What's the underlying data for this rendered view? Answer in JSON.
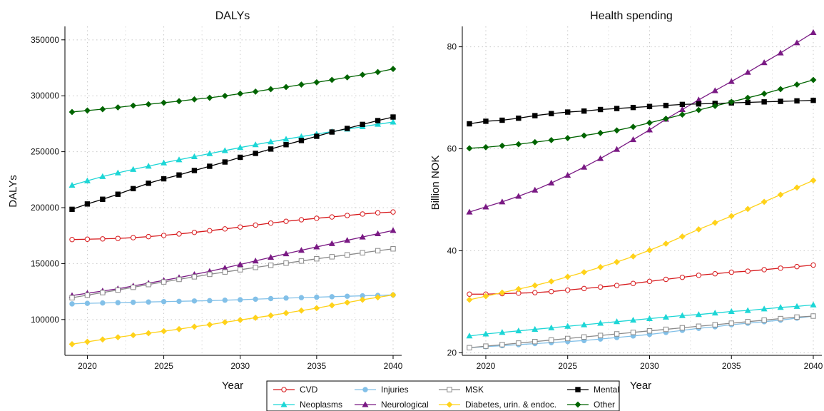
{
  "chart_data": [
    {
      "type": "line",
      "title": "DALYs",
      "xlabel": "Year",
      "ylabel": "DALYs",
      "xlim": [
        2019,
        2040
      ],
      "ylim": [
        68000,
        362000
      ],
      "xticks": [
        "2020",
        "2025",
        "2030",
        "2035",
        "2040"
      ],
      "yticks": [
        "100000",
        "150000",
        "200000",
        "250000",
        "300000",
        "350000"
      ],
      "grid": true,
      "x": [
        2019,
        2020,
        2021,
        2022,
        2023,
        2024,
        2025,
        2026,
        2027,
        2028,
        2029,
        2030,
        2031,
        2032,
        2033,
        2034,
        2035,
        2036,
        2037,
        2038,
        2039,
        2040
      ],
      "series": [
        {
          "name": "CVD",
          "values": [
            171500,
            171800,
            172100,
            172500,
            173200,
            174100,
            175200,
            176500,
            177900,
            179400,
            181000,
            182700,
            184400,
            186200,
            187800,
            189200,
            190500,
            191700,
            193000,
            194300,
            195400,
            196100
          ]
        },
        {
          "name": "Neoplasms",
          "values": [
            220000,
            224000,
            227800,
            231100,
            234200,
            237100,
            240000,
            242800,
            245600,
            248300,
            251000,
            253700,
            256300,
            258800,
            261200,
            263500,
            265800,
            268000,
            270200,
            272400,
            274500,
            276500
          ]
        },
        {
          "name": "Injuries",
          "values": [
            114000,
            114500,
            114800,
            115100,
            115400,
            115700,
            116000,
            116300,
            116600,
            116900,
            117300,
            117700,
            118200,
            118700,
            119200,
            119600,
            120000,
            120400,
            120800,
            121200,
            121600,
            122000
          ]
        },
        {
          "name": "Neurological",
          "values": [
            121500,
            123500,
            125500,
            127500,
            130000,
            132500,
            135000,
            137500,
            140300,
            143100,
            146100,
            149200,
            152400,
            155600,
            158800,
            161900,
            164900,
            167900,
            170800,
            173800,
            176700,
            179600
          ]
        },
        {
          "name": "MSK",
          "values": [
            119500,
            121800,
            124100,
            126400,
            128800,
            131300,
            133600,
            135900,
            138200,
            140400,
            142500,
            144500,
            146600,
            148500,
            150400,
            152300,
            154300,
            156100,
            157800,
            159700,
            161500,
            163200
          ]
        },
        {
          "name": "Diabetes, urin. & endoc.",
          "values": [
            78000,
            80100,
            82200,
            84200,
            86000,
            87800,
            89600,
            91400,
            93600,
            95400,
            97600,
            99600,
            101600,
            103600,
            105800,
            108000,
            110200,
            112700,
            115200,
            117700,
            119800,
            122000
          ]
        },
        {
          "name": "Mental",
          "values": [
            198500,
            203300,
            207500,
            212000,
            217000,
            221800,
            225800,
            229200,
            233200,
            237000,
            240800,
            245000,
            248500,
            252400,
            256300,
            260000,
            263800,
            267600,
            270800,
            274400,
            277800,
            281000
          ]
        },
        {
          "name": "Other",
          "values": [
            285500,
            286800,
            288000,
            289600,
            291200,
            292400,
            293800,
            295200,
            296800,
            298200,
            299900,
            301900,
            303700,
            305900,
            307800,
            310000,
            312000,
            314200,
            316500,
            318800,
            321200,
            324000
          ]
        }
      ]
    },
    {
      "type": "line",
      "title": "Health spending",
      "xlabel": "Year",
      "ylabel": "Billion NOK",
      "xlim": [
        2019,
        2040
      ],
      "ylim": [
        19.5,
        84
      ],
      "xticks": [
        "2020",
        "2025",
        "2030",
        "2035",
        "2040"
      ],
      "yticks": [
        "20",
        "40",
        "60",
        "80"
      ],
      "grid": true,
      "x": [
        2019,
        2020,
        2021,
        2022,
        2023,
        2024,
        2025,
        2026,
        2027,
        2028,
        2029,
        2030,
        2031,
        2032,
        2033,
        2034,
        2035,
        2036,
        2037,
        2038,
        2039,
        2040
      ],
      "series": [
        {
          "name": "CVD",
          "values": [
            31.5,
            31.5,
            31.6,
            31.7,
            31.8,
            32.0,
            32.3,
            32.6,
            32.9,
            33.2,
            33.6,
            34.0,
            34.4,
            34.8,
            35.2,
            35.5,
            35.8,
            36.0,
            36.3,
            36.6,
            36.9,
            37.2
          ]
        },
        {
          "name": "Neoplasms",
          "values": [
            23.3,
            23.7,
            24.0,
            24.3,
            24.6,
            24.9,
            25.2,
            25.5,
            25.8,
            26.1,
            26.4,
            26.7,
            27.0,
            27.3,
            27.5,
            27.8,
            28.1,
            28.3,
            28.6,
            28.9,
            29.1,
            29.4
          ]
        },
        {
          "name": "Injuries",
          "values": [
            21.0,
            21.2,
            21.4,
            21.6,
            21.8,
            22.0,
            22.2,
            22.4,
            22.7,
            23.0,
            23.3,
            23.6,
            24.0,
            24.4,
            24.8,
            25.1,
            25.5,
            25.8,
            26.1,
            26.4,
            26.8,
            27.2
          ]
        },
        {
          "name": "Neurological",
          "values": [
            47.6,
            48.6,
            49.6,
            50.7,
            51.9,
            53.3,
            54.8,
            56.4,
            58.1,
            59.9,
            61.8,
            63.7,
            65.8,
            67.7,
            69.6,
            71.4,
            73.2,
            75.0,
            76.9,
            78.8,
            80.8,
            82.8
          ]
        },
        {
          "name": "MSK",
          "values": [
            21.0,
            21.3,
            21.6,
            21.9,
            22.2,
            22.5,
            22.8,
            23.1,
            23.4,
            23.7,
            24.0,
            24.3,
            24.6,
            24.9,
            25.2,
            25.5,
            25.8,
            26.1,
            26.4,
            26.7,
            27.0,
            27.2
          ]
        },
        {
          "name": "Diabetes, urin. & endoc.",
          "values": [
            30.4,
            31.1,
            31.8,
            32.5,
            33.2,
            34.0,
            34.9,
            35.8,
            36.8,
            37.8,
            38.9,
            40.1,
            41.4,
            42.8,
            44.2,
            45.5,
            46.8,
            48.2,
            49.6,
            51.0,
            52.4,
            53.8
          ]
        },
        {
          "name": "Mental",
          "values": [
            64.9,
            65.4,
            65.6,
            66.0,
            66.5,
            66.9,
            67.2,
            67.4,
            67.7,
            67.9,
            68.1,
            68.3,
            68.5,
            68.7,
            68.8,
            68.9,
            69.0,
            69.1,
            69.2,
            69.3,
            69.4,
            69.5
          ]
        },
        {
          "name": "Other",
          "values": [
            60.1,
            60.3,
            60.6,
            60.9,
            61.3,
            61.7,
            62.1,
            62.6,
            63.1,
            63.6,
            64.3,
            65.1,
            65.9,
            66.7,
            67.6,
            68.4,
            69.2,
            70.0,
            70.8,
            71.7,
            72.6,
            73.5
          ]
        }
      ]
    }
  ],
  "legend": [
    {
      "label": "CVD",
      "color": "#d7191c",
      "marker": "circle-open"
    },
    {
      "label": "Injuries",
      "color": "#82c0e8",
      "marker": "circle"
    },
    {
      "label": "MSK",
      "color": "#8a8a8a",
      "marker": "square-open"
    },
    {
      "label": "Mental",
      "color": "#000000",
      "marker": "square"
    },
    {
      "label": "Neoplasms",
      "color": "#1dd6d6",
      "marker": "triangle"
    },
    {
      "label": "Neurological",
      "color": "#7a1a84",
      "marker": "triangle"
    },
    {
      "label": "Diabetes, urin. & endoc.",
      "color": "#ffd21a",
      "marker": "diamond"
    },
    {
      "label": "Other",
      "color": "#006400",
      "marker": "diamond"
    }
  ]
}
